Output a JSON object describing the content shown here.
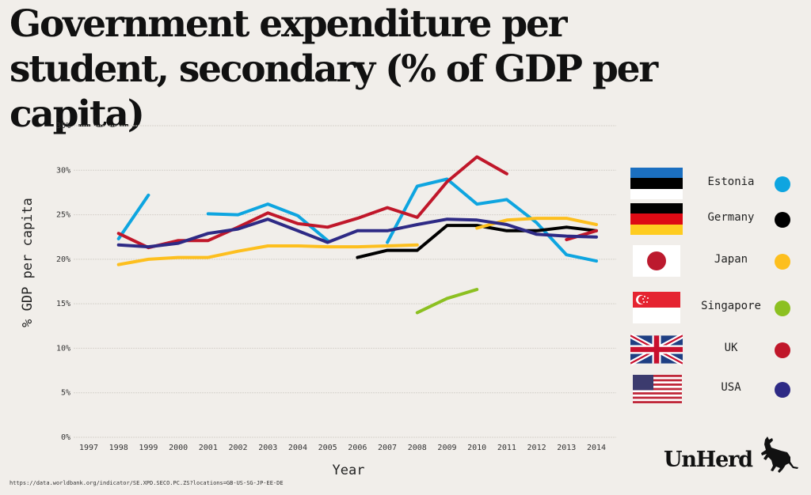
{
  "chart_data": {
    "type": "line",
    "title": "Government expenditure per student, secondary (% of GDP per capita)",
    "xlabel": "Year",
    "ylabel": "% GDP per capita",
    "ylim": [
      0,
      35
    ],
    "xlim": [
      1997,
      2014
    ],
    "grid": true,
    "legend_position": "right",
    "x": [
      1997,
      1998,
      1999,
      2000,
      2001,
      2002,
      2003,
      2004,
      2005,
      2006,
      2007,
      2008,
      2009,
      2010,
      2011,
      2012,
      2013,
      2014
    ],
    "x_tick_labels": [
      "1997",
      "1998",
      "1999",
      "2000",
      "2001",
      "2002",
      "2003",
      "2004",
      "2005",
      "2006",
      "2007",
      "2008",
      "2009",
      "2010",
      "2011",
      "2012",
      "2013",
      "2014"
    ],
    "y_ticks": [
      0,
      5,
      10,
      15,
      20,
      25,
      30,
      35
    ],
    "y_tick_labels": [
      "0%",
      "5%",
      "10%",
      "15%",
      "20%",
      "25%",
      "30%",
      "35%"
    ],
    "series": [
      {
        "name": "Estonia",
        "color": "#0ea5e0",
        "values": [
          null,
          22.3,
          27.2,
          null,
          25.1,
          25.0,
          26.2,
          24.9,
          22.1,
          null,
          21.9,
          28.2,
          29.0,
          26.2,
          26.7,
          24.1,
          20.5,
          19.8
        ]
      },
      {
        "name": "Germany",
        "color": "#000000",
        "values": [
          null,
          null,
          null,
          null,
          null,
          null,
          null,
          null,
          null,
          20.2,
          21.0,
          21.0,
          23.8,
          23.8,
          23.2,
          23.2,
          23.6,
          23.2
        ]
      },
      {
        "name": "Japan",
        "color": "#fdbf1e",
        "values": [
          null,
          19.4,
          20.0,
          20.2,
          20.2,
          20.9,
          21.5,
          21.5,
          21.4,
          21.4,
          21.5,
          21.6,
          null,
          23.5,
          24.4,
          24.6,
          24.6,
          23.9
        ]
      },
      {
        "name": "Singapore",
        "color": "#8cc021",
        "values": [
          null,
          null,
          null,
          null,
          null,
          null,
          null,
          null,
          null,
          null,
          null,
          14.0,
          15.6,
          16.6,
          null,
          null,
          null,
          null
        ]
      },
      {
        "name": "UK",
        "color": "#c0172a",
        "values": [
          null,
          22.9,
          21.3,
          22.1,
          22.1,
          23.6,
          25.2,
          24.0,
          23.6,
          24.6,
          25.8,
          24.7,
          28.7,
          31.5,
          29.6,
          null,
          22.2,
          23.2
        ]
      },
      {
        "name": "USA",
        "color": "#2e2a85",
        "values": [
          null,
          21.6,
          21.4,
          21.8,
          22.9,
          23.4,
          24.5,
          23.2,
          21.9,
          23.2,
          23.2,
          23.9,
          24.5,
          24.4,
          23.9,
          22.8,
          22.6,
          22.5
        ]
      }
    ]
  },
  "legend": [
    {
      "label": "Estonia",
      "flag": "estonia-flag",
      "color": "#0ea5e0"
    },
    {
      "label": "Germany",
      "flag": "germany-flag",
      "color": "#000000"
    },
    {
      "label": "Japan",
      "flag": "japan-flag",
      "color": "#fdbf1e"
    },
    {
      "label": "Singapore",
      "flag": "singapore-flag",
      "color": "#8cc021"
    },
    {
      "label": "UK",
      "flag": "uk-flag",
      "color": "#c0172a"
    },
    {
      "label": "USA",
      "flag": "usa-flag",
      "color": "#2e2a85"
    }
  ],
  "source": "https://data.worldbank.org/indicator/SE.XPD.SECO.PC.ZS?locations=GB-US-SG-JP-EE-DE",
  "logo": {
    "text": "UnHerd",
    "icon": "bull-icon"
  }
}
